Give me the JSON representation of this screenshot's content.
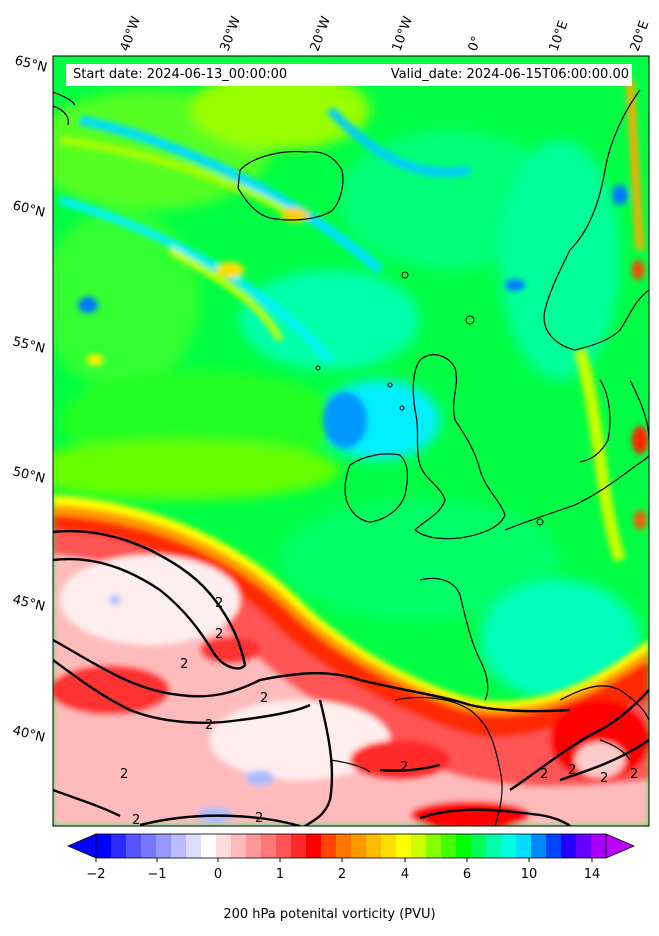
{
  "header": {
    "start_date": "Start date: 2024-06-13_00:00:00",
    "valid_date": "Valid_date: 2024-06-15T06:00:00.00"
  },
  "axes": {
    "lon_labels": [
      "40°W",
      "30°W",
      "20°W",
      "10°W",
      "0°",
      "10°E",
      "20°E"
    ],
    "lat_labels": [
      "65°N",
      "60°N",
      "55°N",
      "50°N",
      "45°N",
      "40°N"
    ]
  },
  "contour_label": "2",
  "colorbar": {
    "title": "200 hPa potenital vorticity (PVU)",
    "tick_labels": [
      "−2",
      "−1",
      "0",
      "1",
      "2",
      "4",
      "6",
      "10",
      "14"
    ],
    "colors": [
      "#0000ff",
      "#2a2aff",
      "#5555ff",
      "#7777ff",
      "#9999ff",
      "#bbbbff",
      "#ddddff",
      "#ffffff",
      "#ffdddd",
      "#ffbbbb",
      "#ff9999",
      "#ff7777",
      "#ff5555",
      "#ff2a2a",
      "#ff0000",
      "#ff4400",
      "#ff7700",
      "#ff9900",
      "#ffbb00",
      "#ffdd00",
      "#ffff00",
      "#ccff00",
      "#88ff00",
      "#44ff00",
      "#00ff00",
      "#00ff55",
      "#00ffaa",
      "#00ffdd",
      "#00ddff",
      "#0088ff",
      "#0044ff",
      "#2200ff",
      "#6600ff",
      "#aa00ff"
    ],
    "under_color": "#0000ff",
    "over_color": "#bb00ff"
  }
}
